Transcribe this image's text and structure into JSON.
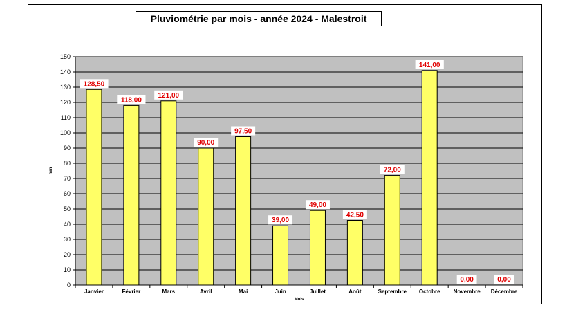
{
  "chart_data": {
    "type": "bar",
    "title": "Pluviométrie par mois - année 2024 - Malestroit",
    "xlabel": "Mois",
    "ylabel": "mm",
    "categories": [
      "Janvier",
      "Février",
      "Mars",
      "Avril",
      "Mai",
      "Juin",
      "Juillet",
      "Août",
      "Septembre",
      "Octobre",
      "Novembre",
      "Décembre"
    ],
    "values": [
      128.5,
      118.0,
      121.0,
      90.0,
      97.5,
      39.0,
      49.0,
      42.5,
      72.0,
      141.0,
      0.0,
      0.0
    ],
    "value_labels": [
      "128,50",
      "118,00",
      "121,00",
      "90,00",
      "97,50",
      "39,00",
      "49,00",
      "42,50",
      "72,00",
      "141,00",
      "0,00",
      "0,00"
    ],
    "yticks": [
      0,
      10,
      20,
      30,
      40,
      50,
      60,
      70,
      80,
      90,
      100,
      110,
      120,
      130,
      140,
      150
    ],
    "ylim": [
      0,
      150
    ],
    "grid": true,
    "legend": "none",
    "colors": {
      "bar": "#ffff66",
      "plot_bg": "#c0c0c0",
      "label": "#e00000"
    }
  }
}
